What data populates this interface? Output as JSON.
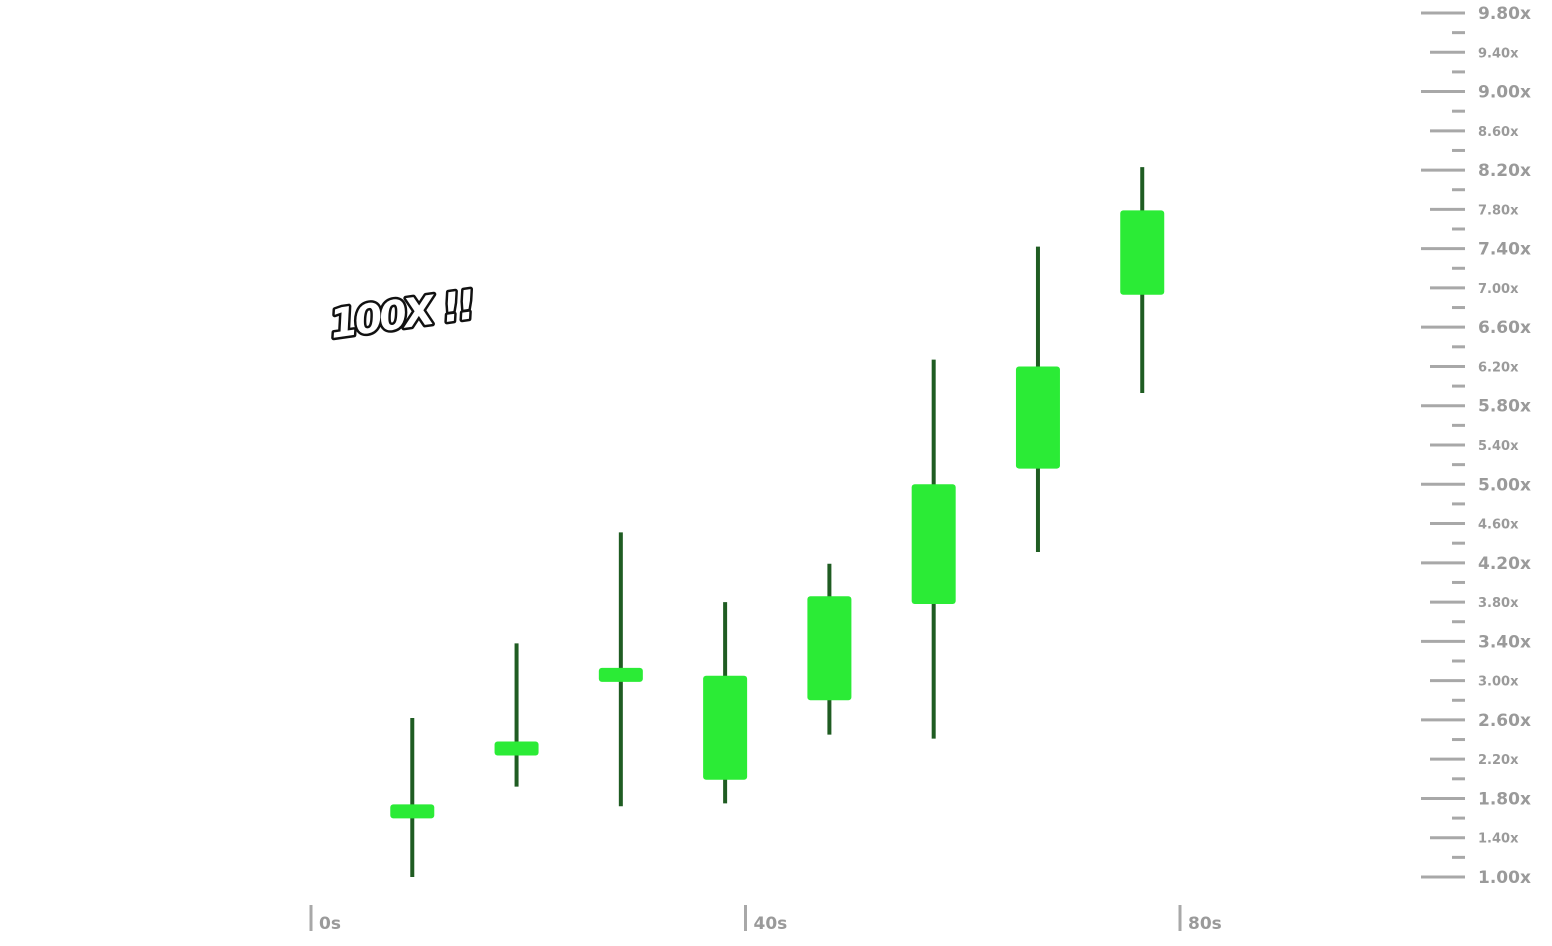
{
  "badge": {
    "text": "100X !!"
  },
  "colors": {
    "candle_body": "#2beb36",
    "candle_wick": "#1f5c22",
    "axis": "#a8a8a8",
    "axis_text": "#9a9a9a",
    "background": "#ffffff"
  },
  "chart_data": {
    "type": "candlestick",
    "title": "",
    "xlabel": "",
    "ylabel": "",
    "x_unit": "s",
    "y_unit": "x",
    "ylim": [
      1.0,
      9.8
    ],
    "xlim": [
      0,
      80
    ],
    "grid": false,
    "x_ticks": [
      {
        "value": 0,
        "label": "0s"
      },
      {
        "value": 40,
        "label": "40s"
      },
      {
        "value": 80,
        "label": "80s"
      }
    ],
    "y_ticks_major": [
      {
        "value": 9.8,
        "label": "9.80x"
      },
      {
        "value": 9.0,
        "label": "9.00x"
      },
      {
        "value": 8.2,
        "label": "8.20x"
      },
      {
        "value": 7.4,
        "label": "7.40x"
      },
      {
        "value": 6.6,
        "label": "6.60x"
      },
      {
        "value": 5.8,
        "label": "5.80x"
      },
      {
        "value": 5.0,
        "label": "5.00x"
      },
      {
        "value": 4.2,
        "label": "4.20x"
      },
      {
        "value": 3.4,
        "label": "3.40x"
      },
      {
        "value": 2.6,
        "label": "2.60x"
      },
      {
        "value": 1.8,
        "label": "1.80x"
      },
      {
        "value": 1.0,
        "label": "1.00x"
      }
    ],
    "y_ticks_minor": [
      {
        "value": 9.4,
        "label": "9.40x"
      },
      {
        "value": 8.6,
        "label": "8.60x"
      },
      {
        "value": 7.8,
        "label": "7.80x"
      },
      {
        "value": 7.0,
        "label": "7.00x"
      },
      {
        "value": 6.2,
        "label": "6.20x"
      },
      {
        "value": 5.4,
        "label": "5.40x"
      },
      {
        "value": 4.6,
        "label": "4.60x"
      },
      {
        "value": 3.8,
        "label": "3.80x"
      },
      {
        "value": 3.0,
        "label": "3.00x"
      },
      {
        "value": 2.2,
        "label": "2.20x"
      },
      {
        "value": 1.4,
        "label": "1.40x"
      }
    ],
    "candles": [
      {
        "t": 9.6,
        "open": 1.65,
        "close": 1.74,
        "low": 1.0,
        "high": 2.62
      },
      {
        "t": 19.2,
        "open": 2.24,
        "close": 2.38,
        "low": 1.92,
        "high": 3.38
      },
      {
        "t": 28.8,
        "open": 3.02,
        "close": 3.13,
        "low": 1.72,
        "high": 4.51
      },
      {
        "t": 38.4,
        "open": 1.99,
        "close": 3.05,
        "low": 1.75,
        "high": 3.8
      },
      {
        "t": 48.0,
        "open": 2.8,
        "close": 3.86,
        "low": 2.45,
        "high": 4.19
      },
      {
        "t": 57.6,
        "open": 3.78,
        "close": 5.0,
        "low": 2.41,
        "high": 6.27
      },
      {
        "t": 67.2,
        "open": 5.16,
        "close": 6.2,
        "low": 4.31,
        "high": 7.42
      },
      {
        "t": 76.8,
        "open": 6.93,
        "close": 7.79,
        "low": 5.93,
        "high": 8.23
      }
    ]
  }
}
